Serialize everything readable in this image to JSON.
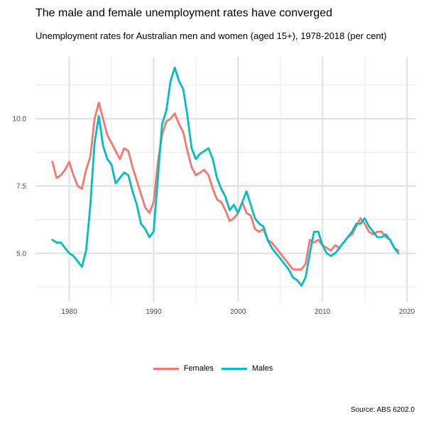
{
  "title": "The male and female unemployment rates have converged",
  "subtitle": "Unemployment rates for Australian men and women (aged 15+), 1978-2018 (per cent)",
  "caption": "Source: ABS 6202.0",
  "chart_data": {
    "type": "line",
    "xlim": [
      1976.0,
      2021.0
    ],
    "ylim": [
      3.2,
      12.3
    ],
    "x_ticks": [
      1980,
      1990,
      2000,
      2010,
      2020
    ],
    "y_ticks": [
      5.0,
      7.5,
      10.0
    ],
    "y_tick_labels": [
      "5.0",
      "7.5",
      "10.0"
    ],
    "grid": true,
    "legend_position": "bottom",
    "series": [
      {
        "name": "Females",
        "color": "#F8766D",
        "x": [
          1978.0,
          1978.5,
          1979.0,
          1979.5,
          1980.0,
          1980.5,
          1981.0,
          1981.5,
          1982.0,
          1982.5,
          1983.0,
          1983.5,
          1984.0,
          1984.5,
          1985.0,
          1985.5,
          1986.0,
          1986.5,
          1987.0,
          1987.5,
          1988.0,
          1988.5,
          1989.0,
          1989.5,
          1990.0,
          1990.5,
          1991.0,
          1991.5,
          1992.0,
          1992.5,
          1993.0,
          1993.5,
          1994.0,
          1994.5,
          1995.0,
          1995.5,
          1996.0,
          1996.5,
          1997.0,
          1997.5,
          1998.0,
          1998.5,
          1999.0,
          1999.5,
          2000.0,
          2000.5,
          2001.0,
          2001.5,
          2002.0,
          2002.5,
          2003.0,
          2003.5,
          2004.0,
          2004.5,
          2005.0,
          2005.5,
          2006.0,
          2006.5,
          2007.0,
          2007.5,
          2008.0,
          2008.5,
          2009.0,
          2009.5,
          2010.0,
          2010.5,
          2011.0,
          2011.5,
          2012.0,
          2012.5,
          2013.0,
          2013.5,
          2014.0,
          2014.5,
          2015.0,
          2015.5,
          2016.0,
          2016.5,
          2017.0,
          2017.5,
          2018.0,
          2018.5,
          2019.0
        ],
        "values": [
          8.4,
          7.8,
          7.9,
          8.1,
          8.4,
          7.9,
          7.5,
          7.4,
          8.1,
          8.6,
          10.0,
          10.6,
          10.0,
          9.4,
          9.1,
          8.8,
          8.5,
          8.9,
          8.8,
          8.2,
          7.7,
          7.2,
          6.7,
          6.5,
          6.9,
          8.4,
          9.4,
          9.9,
          10.0,
          10.2,
          9.8,
          9.5,
          8.8,
          8.2,
          7.9,
          8.0,
          8.1,
          7.9,
          7.4,
          7.0,
          6.9,
          6.6,
          6.2,
          6.3,
          6.5,
          6.9,
          6.5,
          6.4,
          5.9,
          5.8,
          5.9,
          5.5,
          5.4,
          5.2,
          5.0,
          4.8,
          4.6,
          4.4,
          4.4,
          4.4,
          4.6,
          5.5,
          5.4,
          5.5,
          5.3,
          5.2,
          5.1,
          5.3,
          5.2,
          5.4,
          5.6,
          5.7,
          6.0,
          6.3,
          6.1,
          5.8,
          5.7,
          5.8,
          5.8,
          5.6,
          5.5,
          5.2,
          5.1
        ]
      },
      {
        "name": "Males",
        "color": "#00BFC4",
        "x": [
          1978.0,
          1978.5,
          1979.0,
          1979.5,
          1980.0,
          1980.5,
          1981.0,
          1981.5,
          1982.0,
          1982.5,
          1983.0,
          1983.5,
          1984.0,
          1984.5,
          1985.0,
          1985.5,
          1986.0,
          1986.5,
          1987.0,
          1987.5,
          1988.0,
          1988.5,
          1989.0,
          1989.5,
          1990.0,
          1990.5,
          1991.0,
          1991.5,
          1992.0,
          1992.5,
          1993.0,
          1993.5,
          1994.0,
          1994.5,
          1995.0,
          1995.5,
          1996.0,
          1996.5,
          1997.0,
          1997.5,
          1998.0,
          1998.5,
          1999.0,
          1999.5,
          2000.0,
          2000.5,
          2001.0,
          2001.5,
          2002.0,
          2002.5,
          2003.0,
          2003.5,
          2004.0,
          2004.5,
          2005.0,
          2005.5,
          2006.0,
          2006.5,
          2007.0,
          2007.5,
          2008.0,
          2008.5,
          2009.0,
          2009.5,
          2010.0,
          2010.5,
          2011.0,
          2011.5,
          2012.0,
          2012.5,
          2013.0,
          2013.5,
          2014.0,
          2014.5,
          2015.0,
          2015.5,
          2016.0,
          2016.5,
          2017.0,
          2017.5,
          2018.0,
          2018.5,
          2019.0
        ],
        "values": [
          5.5,
          5.4,
          5.4,
          5.2,
          5.0,
          4.9,
          4.7,
          4.5,
          5.1,
          6.8,
          9.1,
          10.1,
          9.0,
          8.5,
          8.3,
          7.6,
          7.8,
          8.0,
          7.9,
          7.3,
          6.8,
          6.1,
          5.9,
          5.6,
          5.8,
          7.8,
          9.8,
          10.3,
          11.4,
          11.9,
          11.4,
          11.1,
          10.1,
          8.9,
          8.5,
          8.7,
          8.8,
          8.9,
          8.5,
          7.8,
          7.4,
          7.1,
          6.6,
          6.8,
          6.5,
          6.9,
          7.3,
          6.8,
          6.3,
          6.1,
          6.0,
          5.5,
          5.2,
          5.0,
          4.8,
          4.6,
          4.4,
          4.1,
          4.0,
          3.8,
          4.1,
          5.0,
          5.8,
          5.8,
          5.3,
          5.0,
          4.9,
          5.0,
          5.2,
          5.4,
          5.6,
          5.8,
          6.1,
          6.1,
          6.3,
          6.0,
          5.8,
          5.6,
          5.6,
          5.7,
          5.5,
          5.2,
          5.0
        ]
      }
    ]
  },
  "legend": {
    "items": [
      {
        "label": "Females",
        "color": "#F8766D"
      },
      {
        "label": "Males",
        "color": "#00BFC4"
      }
    ]
  }
}
